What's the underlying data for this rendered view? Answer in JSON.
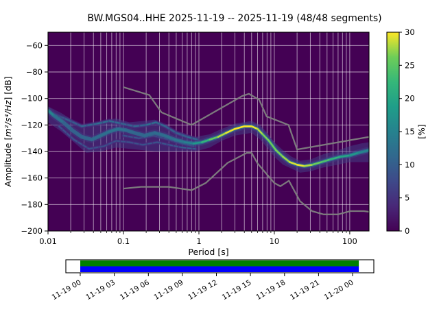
{
  "figure": {
    "title": "BW.MGS04..HHE   2025-11-19 -- 2025-11-19  (48/48 segments)"
  },
  "chart_data": {
    "type": "heatmap",
    "title": "BW.MGS04..HHE   2025-11-19 -- 2025-11-19  (48/48 segments)",
    "xlabel": "Period [s]",
    "ylabel": "Amplitude [m²/s⁴/Hz] [dB]",
    "ylabel_parts": [
      "Amplitude [",
      "m²/s⁴/Hz",
      "] [dB]"
    ],
    "xscale": "log",
    "xlim": [
      0.01,
      180
    ],
    "ylim": [
      -200,
      -50
    ],
    "x_ticks": [
      0.01,
      0.1,
      1,
      10,
      100
    ],
    "x_tick_labels": [
      "0.01",
      "0.1",
      "1",
      "10",
      "100"
    ],
    "y_ticks": [
      -60,
      -80,
      -100,
      -120,
      -140,
      -160,
      -180,
      -200
    ],
    "y_tick_labels": [
      "−60",
      "−80",
      "−100",
      "−120",
      "−140",
      "−160",
      "−180",
      "−200"
    ],
    "grid": true,
    "grid_color": "#ffffff",
    "background_color": "#440154",
    "colorbar": {
      "label": "[%]",
      "vmin": 0,
      "vmax": 30,
      "ticks": [
        0,
        5,
        10,
        15,
        20,
        25,
        30
      ],
      "tick_labels": [
        "0",
        "5",
        "10",
        "15",
        "20",
        "25",
        "30"
      ],
      "colormap": "viridis",
      "stops": [
        [
          0.0,
          "#440154"
        ],
        [
          0.125,
          "#482878"
        ],
        [
          0.25,
          "#3e4989"
        ],
        [
          0.375,
          "#31688e"
        ],
        [
          0.5,
          "#26828e"
        ],
        [
          0.625,
          "#1f9e89"
        ],
        [
          0.75,
          "#35b779"
        ],
        [
          0.875,
          "#6ece58"
        ],
        [
          1.0,
          "#fde725"
        ]
      ]
    },
    "noise_models": {
      "color": "#7f7f7f",
      "high_model": [
        [
          0.1,
          -91.5
        ],
        [
          0.22,
          -97.4
        ],
        [
          0.32,
          -110.5
        ],
        [
          0.8,
          -120.0
        ],
        [
          3.8,
          -98.0
        ],
        [
          4.6,
          -96.5
        ],
        [
          6.3,
          -101.0
        ],
        [
          7.9,
          -113.5
        ],
        [
          15.4,
          -120.0
        ],
        [
          20.0,
          -138.5
        ],
        [
          180.0,
          -129.0
        ]
      ],
      "low_model": [
        [
          0.1,
          -168.0
        ],
        [
          0.17,
          -166.7
        ],
        [
          0.4,
          -166.7
        ],
        [
          0.8,
          -169.2
        ],
        [
          1.24,
          -163.7
        ],
        [
          2.4,
          -148.6
        ],
        [
          4.3,
          -141.1
        ],
        [
          5.0,
          -141.1
        ],
        [
          6.0,
          -149.0
        ],
        [
          10.0,
          -163.8
        ],
        [
          12.0,
          -166.2
        ],
        [
          15.6,
          -162.1
        ],
        [
          21.9,
          -177.5
        ],
        [
          31.6,
          -185.0
        ],
        [
          45.0,
          -187.5
        ],
        [
          70.0,
          -187.5
        ],
        [
          101.0,
          -185.0
        ],
        [
          154.0,
          -185.0
        ],
        [
          180.0,
          -185.5
        ]
      ]
    },
    "ppsd": {
      "band_upper": [
        [
          0.01,
          -106
        ],
        [
          0.015,
          -111
        ],
        [
          0.022,
          -117
        ],
        [
          0.032,
          -122
        ],
        [
          0.05,
          -117
        ],
        [
          0.08,
          -115
        ],
        [
          0.12,
          -118
        ],
        [
          0.18,
          -117
        ],
        [
          0.26,
          -116
        ],
        [
          0.4,
          -123
        ],
        [
          0.6,
          -126
        ],
        [
          0.9,
          -129
        ],
        [
          1.4,
          -127
        ],
        [
          2.0,
          -123
        ],
        [
          3.0,
          -119
        ],
        [
          5.0,
          -117
        ],
        [
          6.5,
          -120
        ],
        [
          8.0,
          -126
        ],
        [
          10.0,
          -133
        ],
        [
          13.0,
          -139
        ],
        [
          17.0,
          -144
        ],
        [
          22.0,
          -147
        ],
        [
          30.0,
          -146
        ],
        [
          45.0,
          -142
        ],
        [
          70.0,
          -139
        ],
        [
          100,
          -136
        ],
        [
          140,
          -134
        ],
        [
          180,
          -133
        ]
      ],
      "band_lower": [
        [
          0.01,
          -118
        ],
        [
          0.015,
          -125
        ],
        [
          0.022,
          -133
        ],
        [
          0.032,
          -141
        ],
        [
          0.05,
          -140
        ],
        [
          0.08,
          -137
        ],
        [
          0.12,
          -138
        ],
        [
          0.18,
          -139
        ],
        [
          0.26,
          -140
        ],
        [
          0.4,
          -140
        ],
        [
          0.6,
          -140
        ],
        [
          0.9,
          -140
        ],
        [
          1.4,
          -137
        ],
        [
          2.0,
          -132
        ],
        [
          3.0,
          -128
        ],
        [
          5.0,
          -126
        ],
        [
          6.5,
          -131
        ],
        [
          8.0,
          -137
        ],
        [
          10.0,
          -144
        ],
        [
          13.0,
          -150
        ],
        [
          17.0,
          -153
        ],
        [
          22.0,
          -156
        ],
        [
          30.0,
          -155
        ],
        [
          45.0,
          -152
        ],
        [
          70.0,
          -150
        ],
        [
          100,
          -148
        ],
        [
          140,
          -148
        ],
        [
          180,
          -148
        ]
      ],
      "ridges": [
        {
          "name": "main-mode",
          "points": [
            [
              0.01,
              -109,
              17
            ],
            [
              0.012,
              -113,
              14
            ],
            [
              0.016,
              -118,
              11
            ],
            [
              0.021,
              -124,
              10
            ],
            [
              0.028,
              -129,
              11
            ],
            [
              0.038,
              -131,
              11
            ],
            [
              0.05,
              -128,
              12
            ],
            [
              0.065,
              -125,
              13
            ],
            [
              0.085,
              -123,
              13
            ],
            [
              0.11,
              -124,
              12
            ],
            [
              0.14,
              -126,
              11
            ],
            [
              0.19,
              -128,
              11
            ],
            [
              0.26,
              -126,
              12
            ],
            [
              0.35,
              -128,
              12
            ],
            [
              0.48,
              -131,
              13
            ],
            [
              0.65,
              -133,
              14
            ],
            [
              0.85,
              -134,
              16
            ],
            [
              1.1,
              -133,
              20
            ],
            [
              1.4,
              -131,
              24
            ],
            [
              1.8,
              -129,
              27
            ],
            [
              2.3,
              -126,
              29
            ],
            [
              3.0,
              -123,
              30
            ],
            [
              4.0,
              -121,
              30
            ],
            [
              5.0,
              -121,
              30
            ],
            [
              6.0,
              -123,
              29
            ],
            [
              7.0,
              -127,
              27
            ],
            [
              8.5,
              -132,
              26
            ],
            [
              10.5,
              -139,
              26
            ],
            [
              13.0,
              -144,
              27
            ],
            [
              16.0,
              -148,
              28
            ],
            [
              20.0,
              -150,
              30
            ],
            [
              25.0,
              -151,
              29
            ],
            [
              32.0,
              -150,
              27
            ],
            [
              42.0,
              -148,
              25
            ],
            [
              55.0,
              -146,
              23
            ],
            [
              75.0,
              -144,
              21
            ],
            [
              100,
              -143,
              19
            ],
            [
              130,
              -141,
              17
            ],
            [
              180,
              -139,
              14
            ]
          ]
        },
        {
          "name": "upper-mode",
          "points": [
            [
              0.012,
              -112,
              11
            ],
            [
              0.018,
              -116,
              10
            ],
            [
              0.028,
              -121,
              10
            ],
            [
              0.045,
              -119,
              12
            ],
            [
              0.065,
              -117,
              13
            ],
            [
              0.095,
              -119,
              11
            ],
            [
              0.14,
              -121,
              10
            ],
            [
              0.2,
              -120,
              12
            ],
            [
              0.27,
              -118,
              13
            ],
            [
              0.36,
              -121,
              11
            ],
            [
              0.5,
              -126,
              10
            ],
            [
              0.7,
              -129,
              11
            ],
            [
              0.95,
              -131,
              12
            ]
          ]
        },
        {
          "name": "mid-mode",
          "points": [
            [
              0.1,
              -128,
              9
            ],
            [
              0.16,
              -130,
              9
            ],
            [
              0.25,
              -128,
              10
            ],
            [
              0.4,
              -131,
              9
            ],
            [
              0.6,
              -134,
              10
            ],
            [
              0.85,
              -136,
              10
            ]
          ]
        },
        {
          "name": "lower-mode",
          "points": [
            [
              0.014,
              -121,
              8
            ],
            [
              0.022,
              -131,
              9
            ],
            [
              0.035,
              -138,
              9
            ],
            [
              0.055,
              -136,
              8
            ],
            [
              0.08,
              -132,
              9
            ],
            [
              0.12,
              -133,
              8
            ],
            [
              0.18,
              -135,
              9
            ],
            [
              0.28,
              -133,
              9
            ],
            [
              0.4,
              -135,
              9
            ],
            [
              0.6,
              -137,
              10
            ],
            [
              0.9,
              -138,
              11
            ]
          ]
        }
      ]
    }
  },
  "timeline": {
    "tick_labels": [
      "11-19 00",
      "11-19 03",
      "11-19 06",
      "11-19 09",
      "11-19 12",
      "11-19 15",
      "11-19 18",
      "11-19 21",
      "11-20 00"
    ],
    "tick_hours": [
      0,
      3,
      6,
      9,
      12,
      15,
      18,
      21,
      24
    ],
    "coverage_hours": [
      0,
      24.55
    ],
    "processed_color": "#008000",
    "data_color": "#0000ff",
    "box_color": "#ffffff"
  }
}
